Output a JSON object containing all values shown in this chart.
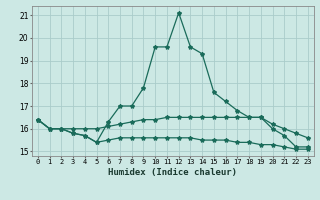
{
  "title": "",
  "xlabel": "Humidex (Indice chaleur)",
  "bg_color": "#cce8e4",
  "grid_color": "#aaccca",
  "line_color": "#1a6b5a",
  "xlim": [
    -0.5,
    23.5
  ],
  "ylim": [
    14.8,
    21.4
  ],
  "yticks": [
    15,
    16,
    17,
    18,
    19,
    20,
    21
  ],
  "xticks": [
    0,
    1,
    2,
    3,
    4,
    5,
    6,
    7,
    8,
    9,
    10,
    11,
    12,
    13,
    14,
    15,
    16,
    17,
    18,
    19,
    20,
    21,
    22,
    23
  ],
  "line1_x": [
    0,
    1,
    2,
    3,
    4,
    5,
    6,
    7,
    8,
    9,
    10,
    11,
    12,
    13,
    14,
    15,
    16,
    17,
    18,
    19,
    20,
    21,
    22,
    23
  ],
  "line1_y": [
    16.4,
    16.0,
    16.0,
    15.8,
    15.7,
    15.4,
    16.3,
    17.0,
    17.0,
    17.8,
    19.6,
    19.6,
    21.1,
    19.6,
    19.3,
    17.6,
    17.2,
    16.8,
    16.5,
    16.5,
    16.0,
    15.7,
    15.2,
    15.2
  ],
  "line2_x": [
    0,
    1,
    2,
    3,
    4,
    5,
    6,
    7,
    8,
    9,
    10,
    11,
    12,
    13,
    14,
    15,
    16,
    17,
    18,
    19,
    20,
    21,
    22,
    23
  ],
  "line2_y": [
    16.4,
    16.0,
    16.0,
    16.0,
    16.0,
    16.0,
    16.1,
    16.2,
    16.3,
    16.4,
    16.4,
    16.5,
    16.5,
    16.5,
    16.5,
    16.5,
    16.5,
    16.5,
    16.5,
    16.5,
    16.2,
    16.0,
    15.8,
    15.6
  ],
  "line3_x": [
    0,
    1,
    2,
    3,
    4,
    5,
    6,
    7,
    8,
    9,
    10,
    11,
    12,
    13,
    14,
    15,
    16,
    17,
    18,
    19,
    20,
    21,
    22,
    23
  ],
  "line3_y": [
    16.4,
    16.0,
    16.0,
    15.8,
    15.7,
    15.4,
    15.5,
    15.6,
    15.6,
    15.6,
    15.6,
    15.6,
    15.6,
    15.6,
    15.5,
    15.5,
    15.5,
    15.4,
    15.4,
    15.3,
    15.3,
    15.2,
    15.1,
    15.1
  ],
  "tick_fontsize": 5.0,
  "xlabel_fontsize": 6.5,
  "marker_size": 3.0,
  "line_width": 0.9
}
